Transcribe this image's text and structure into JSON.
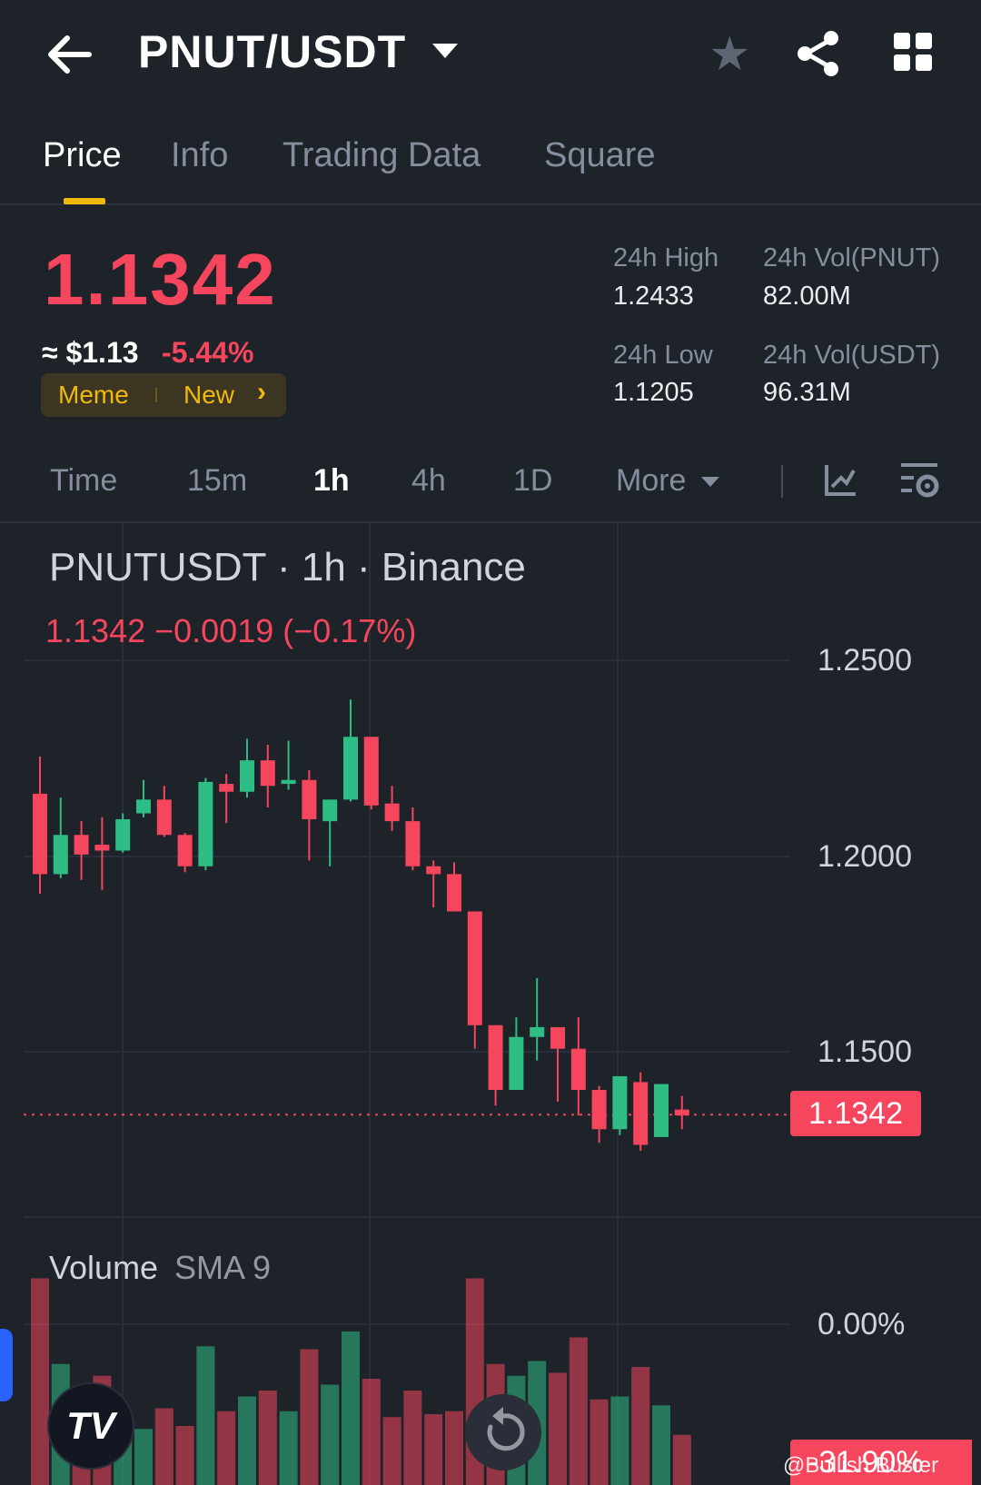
{
  "header": {
    "pair": "PNUT/USDT",
    "icons": [
      "arrow-left-icon",
      "caret-down-icon",
      "star-icon",
      "share-icon",
      "grid-icon"
    ]
  },
  "tabs": [
    {
      "label": "Price",
      "active": true
    },
    {
      "label": "Info",
      "active": false
    },
    {
      "label": "Trading Data",
      "active": false
    },
    {
      "label": "Square",
      "active": false
    }
  ],
  "ticker": {
    "last_price": "1.1342",
    "usd_approx": "≈ $1.13",
    "change_pct": "-5.44%",
    "tags": [
      "Meme",
      "New"
    ],
    "stats": {
      "high_label": "24h High",
      "high_value": "1.2433",
      "low_label": "24h Low",
      "low_value": "1.1205",
      "vol_base_label": "24h Vol(PNUT)",
      "vol_base_value": "82.00M",
      "vol_quote_label": "24h Vol(USDT)",
      "vol_quote_value": "96.31M"
    }
  },
  "intervals": {
    "items": [
      "Time",
      "15m",
      "1h",
      "4h",
      "1D",
      "More"
    ],
    "active": "1h",
    "icons": [
      "indicator-icon",
      "chart-settings-icon"
    ]
  },
  "chart": {
    "title": "PNUTUSDT · 1h · Binance",
    "ohlc_line": "1.1342  −0.0019 (−0.17%)",
    "y_labels": [
      "1.2500",
      "1.2000",
      "1.1500"
    ],
    "current_price_tag": "1.1342",
    "volume_title": "Volume",
    "volume_sma": "SMA 9",
    "volume_axis_label": "0.00%",
    "volume_bottom_tag": "-31.90%",
    "up_color": "#2ebd85",
    "down_color": "#f6465d",
    "watermark": "@Bullish Buster"
  },
  "chart_data": {
    "type": "candlestick",
    "ylim": [
      1.107,
      1.2895
    ],
    "candles": [
      {
        "o": 1.216,
        "h": 1.2255,
        "l": 1.1905,
        "c": 1.1955
      },
      {
        "o": 1.1955,
        "h": 1.215,
        "l": 1.1945,
        "c": 1.2055
      },
      {
        "o": 1.2055,
        "h": 1.209,
        "l": 1.194,
        "c": 1.2005
      },
      {
        "o": 1.203,
        "h": 1.21,
        "l": 1.1915,
        "c": 1.2015
      },
      {
        "o": 1.2015,
        "h": 1.211,
        "l": 1.201,
        "c": 1.2095
      },
      {
        "o": 1.211,
        "h": 1.2195,
        "l": 1.21,
        "c": 1.2145
      },
      {
        "o": 1.2145,
        "h": 1.218,
        "l": 1.205,
        "c": 1.2055
      },
      {
        "o": 1.2055,
        "h": 1.206,
        "l": 1.196,
        "c": 1.1975
      },
      {
        "o": 1.1975,
        "h": 1.22,
        "l": 1.1965,
        "c": 1.219
      },
      {
        "o": 1.2185,
        "h": 1.221,
        "l": 1.2085,
        "c": 1.2165
      },
      {
        "o": 1.2165,
        "h": 1.23,
        "l": 1.215,
        "c": 1.2245
      },
      {
        "o": 1.2245,
        "h": 1.2285,
        "l": 1.2125,
        "c": 1.218
      },
      {
        "o": 1.2185,
        "h": 1.2295,
        "l": 1.217,
        "c": 1.2195
      },
      {
        "o": 1.2195,
        "h": 1.222,
        "l": 1.199,
        "c": 1.2095
      },
      {
        "o": 1.209,
        "h": 1.2145,
        "l": 1.1975,
        "c": 1.2145
      },
      {
        "o": 1.2145,
        "h": 1.24,
        "l": 1.214,
        "c": 1.2305
      },
      {
        "o": 1.2305,
        "h": 1.23,
        "l": 1.212,
        "c": 1.213
      },
      {
        "o": 1.2135,
        "h": 1.218,
        "l": 1.2065,
        "c": 1.209
      },
      {
        "o": 1.209,
        "h": 1.2125,
        "l": 1.1965,
        "c": 1.1975
      },
      {
        "o": 1.1975,
        "h": 1.199,
        "l": 1.187,
        "c": 1.1955
      },
      {
        "o": 1.1955,
        "h": 1.1985,
        "l": 1.186,
        "c": 1.186
      },
      {
        "o": 1.186,
        "h": 1.186,
        "l": 1.151,
        "c": 1.157
      },
      {
        "o": 1.157,
        "h": 1.157,
        "l": 1.1365,
        "c": 1.1405
      },
      {
        "o": 1.1405,
        "h": 1.159,
        "l": 1.1405,
        "c": 1.154
      },
      {
        "o": 1.154,
        "h": 1.169,
        "l": 1.148,
        "c": 1.1565
      },
      {
        "o": 1.1565,
        "h": 1.1565,
        "l": 1.1375,
        "c": 1.151
      },
      {
        "o": 1.151,
        "h": 1.159,
        "l": 1.134,
        "c": 1.1405
      },
      {
        "o": 1.1405,
        "h": 1.1415,
        "l": 1.127,
        "c": 1.1305
      },
      {
        "o": 1.1305,
        "h": 1.144,
        "l": 1.129,
        "c": 1.144
      },
      {
        "o": 1.1425,
        "h": 1.145,
        "l": 1.125,
        "c": 1.1265
      },
      {
        "o": 1.1285,
        "h": 1.142,
        "l": 1.1285,
        "c": 1.142
      },
      {
        "o": 1.1355,
        "h": 1.139,
        "l": 1.1305,
        "c": 1.134
      }
    ],
    "volume_axis_label": "0.00%"
  }
}
